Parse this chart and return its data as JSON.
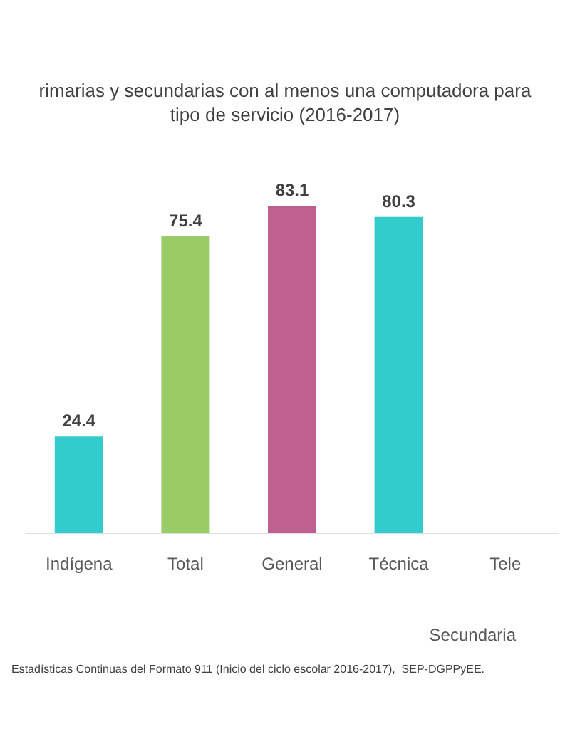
{
  "chart_data": {
    "type": "bar",
    "title": "rimarias y secundarias con al menos una computadora para\ntipo de servicio (2016-2017)",
    "categories": [
      "Indígena",
      "Total",
      "General",
      "Técnica",
      "Tele"
    ],
    "values": [
      24.4,
      75.4,
      83.1,
      80.3,
      null
    ],
    "colors": [
      "#33cccc",
      "#99cc66",
      "#c06090",
      "#33cccc",
      "#33cccc"
    ],
    "data_labels": true,
    "grid": false,
    "tick_labels": "x",
    "annotations": [
      "Secundaria",
      "Estadísticas Continuas del Formato 911 (Inicio del ciclo escolar 2016-2017),  SEP-DGPPyEE."
    ]
  }
}
